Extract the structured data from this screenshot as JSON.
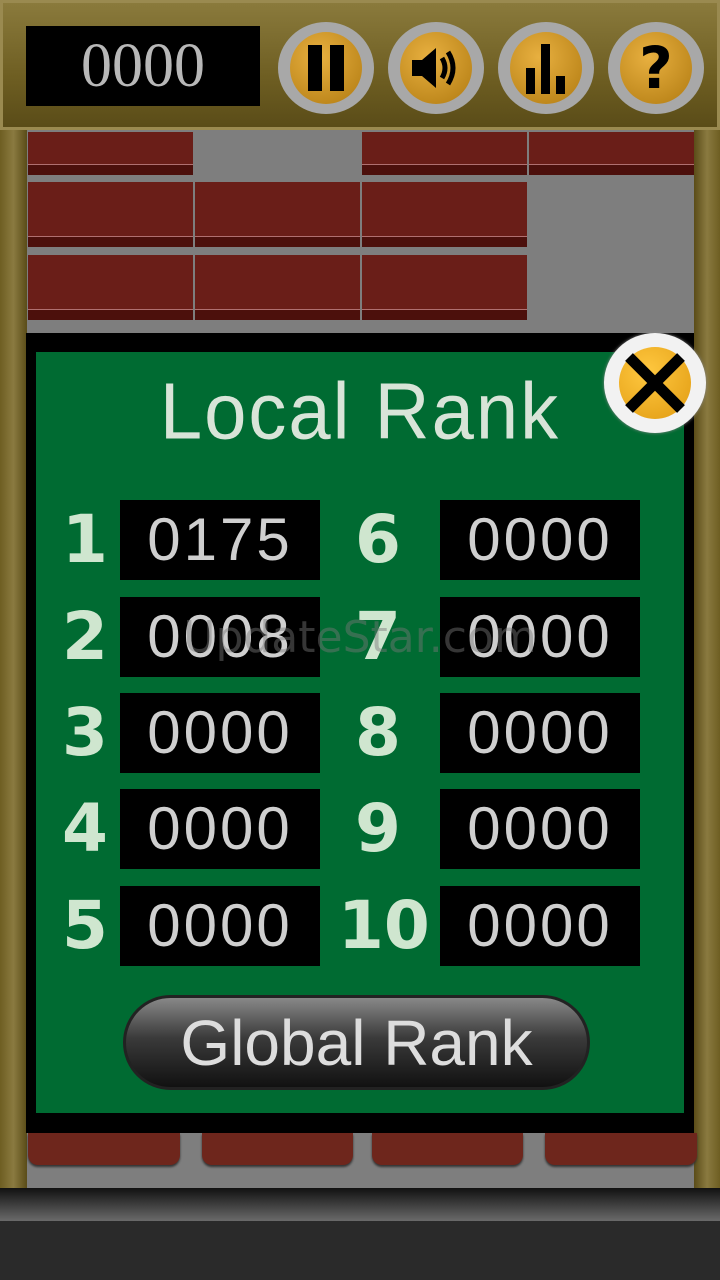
{
  "header": {
    "score": "0000",
    "buttons": [
      {
        "icon": "pause-icon"
      },
      {
        "icon": "sound-icon"
      },
      {
        "icon": "stats-icon"
      },
      {
        "icon": "help-icon"
      }
    ]
  },
  "dialog": {
    "title": "Local Rank",
    "close_icon": "close-icon",
    "ranks": [
      {
        "rank": "1",
        "score": "0175"
      },
      {
        "rank": "2",
        "score": "0008"
      },
      {
        "rank": "3",
        "score": "0000"
      },
      {
        "rank": "4",
        "score": "0000"
      },
      {
        "rank": "5",
        "score": "0000"
      },
      {
        "rank": "6",
        "score": "0000"
      },
      {
        "rank": "7",
        "score": "0000"
      },
      {
        "rank": "8",
        "score": "0000"
      },
      {
        "rank": "9",
        "score": "0000"
      },
      {
        "rank": "10",
        "score": "0000"
      }
    ],
    "global_button": "Global Rank"
  },
  "watermark": "UpdateStar.com",
  "colors": {
    "panel_green": "#006b32",
    "brick": "#6a1e18",
    "gold": "#e0a020"
  }
}
